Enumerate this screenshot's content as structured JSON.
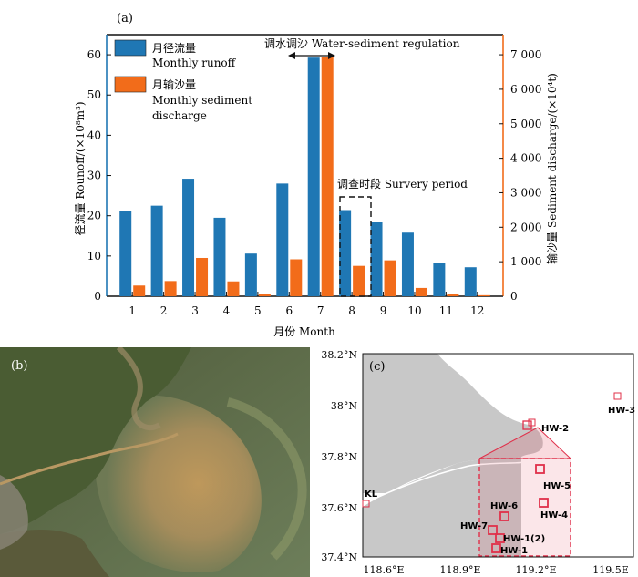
{
  "colors": {
    "runoff": "#1f77b4",
    "sediment": "#f26c1a",
    "land": "#c8c8c8",
    "study_box": "#e0304a",
    "station": "#e0304a"
  },
  "panel_a": {
    "panel_label": "(a)",
    "legend": {
      "runoff_cn": "月径流量",
      "runoff_en": "Monthly runoff",
      "sediment_cn": "月输沙量",
      "sediment_en_1": "Monthly sediment",
      "sediment_en_2": "discharge"
    },
    "annotations": {
      "regulation": "调水调沙 Water-sediment regulation",
      "survey": "调查时段 Survery period"
    },
    "xlabel": "月份 Month",
    "ylabel_left": "径流量 Rounoff/(×10⁸m³)",
    "ylabel_right": "输沙量 Sediment discharge/(×10⁴t)"
  },
  "chart_data": {
    "type": "bar",
    "categories": [
      "1",
      "2",
      "3",
      "4",
      "5",
      "6",
      "7",
      "8",
      "9",
      "10",
      "11",
      "12"
    ],
    "series": [
      {
        "name": "月径流量 Monthly runoff",
        "axis": "left",
        "values": [
          21.1,
          22.5,
          29.2,
          19.5,
          10.6,
          28.0,
          59.3,
          21.4,
          18.4,
          15.8,
          8.3,
          7.2
        ]
      },
      {
        "name": "月输沙量 Monthly sediment discharge",
        "axis": "right",
        "values": [
          310,
          440,
          1110,
          430,
          70,
          1070,
          6930,
          880,
          1040,
          240,
          60,
          30
        ]
      }
    ],
    "ylim_left": [
      0,
      65
    ],
    "ylim_right": [
      0,
      7583
    ],
    "left_ticks": [
      "0",
      "10",
      "20",
      "30",
      "40",
      "50",
      "60"
    ],
    "right_ticks": [
      "0",
      "1 000",
      "2 000",
      "3 000",
      "4 000",
      "5 000",
      "6 000",
      "7 000"
    ],
    "grid": false
  },
  "panel_b": {
    "panel_label": "(b)"
  },
  "panel_c": {
    "panel_label": "(c)",
    "lat_labels": [
      "38.2°N",
      "38°N",
      "37.8°N",
      "37.6°N",
      "37.4°N"
    ],
    "lon_labels": [
      "118.6°E",
      "118.9°E",
      "119.2°E",
      "119.5E"
    ],
    "stations": [
      "HW-3",
      "HW-2",
      "HW-5",
      "HW-6",
      "HW-4",
      "HW-7",
      "HW-1(2)",
      "HW-1",
      "KL"
    ]
  }
}
